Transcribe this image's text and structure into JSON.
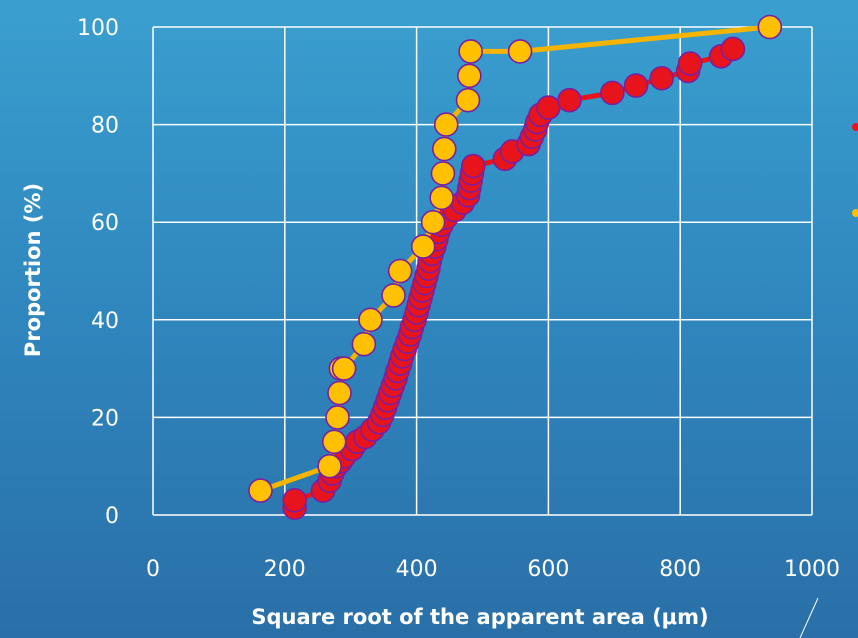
{
  "chart_data": {
    "type": "scatter",
    "title": "",
    "xlabel": "Square root of the apparent area (μm)",
    "ylabel": "Proportion (%)",
    "xlim": [
      0,
      1000
    ],
    "ylim": [
      0,
      100
    ],
    "xticks": [
      "0",
      "200",
      "400",
      "600",
      "800",
      "1000"
    ],
    "yticks": [
      "0",
      "20",
      "40",
      "60",
      "80",
      "100"
    ],
    "grid": true,
    "legend": "right (partially cut off)",
    "colors": {
      "series_red": "#e8141c",
      "series_yellow": "#ffc000",
      "line_yellow": "#f4b400",
      "marker_edge": "#7a1fa2"
    },
    "series": [
      {
        "color": "#e8141c",
        "x": [
          215,
          215,
          258,
          268,
          272,
          278,
          285,
          290,
          302,
          310,
          322,
          333,
          343,
          348,
          352,
          356,
          360,
          364,
          368,
          371,
          375,
          378,
          382,
          386,
          390,
          393,
          397,
          400,
          403,
          406,
          409,
          412,
          415,
          418,
          420,
          423,
          427,
          430,
          433,
          438,
          445,
          458,
          470,
          478,
          480,
          482,
          484,
          486,
          534,
          545,
          570,
          575,
          580,
          583,
          588,
          600,
          632,
          697,
          733,
          772,
          812,
          815,
          862,
          880
        ],
        "y": [
          1.5,
          3,
          5,
          7,
          8.5,
          10,
          11,
          12,
          13.5,
          15,
          16,
          17.5,
          19,
          20.5,
          22,
          23.5,
          25,
          26.5,
          28,
          29.5,
          31,
          32.5,
          34,
          35.5,
          37,
          38.5,
          40,
          41.5,
          43,
          44.5,
          46,
          47.5,
          49,
          50.5,
          52,
          53.5,
          55,
          56.5,
          58,
          59.5,
          61,
          62.5,
          64,
          65.5,
          67,
          68.5,
          70,
          71.5,
          73,
          74.5,
          76,
          77.5,
          79,
          80.5,
          82,
          83.5,
          85,
          86.5,
          88,
          89.5,
          91,
          92.5,
          94,
          95.5
        ]
      },
      {
        "color": "#ffc000",
        "x": [
          163,
          268,
          275,
          280,
          283,
          285,
          290,
          320,
          330,
          365,
          375,
          410,
          425,
          438,
          440,
          442,
          445,
          478,
          480,
          482,
          557,
          936
        ],
        "y": [
          5,
          10,
          15,
          20,
          25,
          30,
          30,
          35,
          40,
          45,
          50,
          55,
          60,
          65,
          70,
          75,
          80,
          85,
          90,
          95,
          95,
          100
        ]
      }
    ]
  }
}
